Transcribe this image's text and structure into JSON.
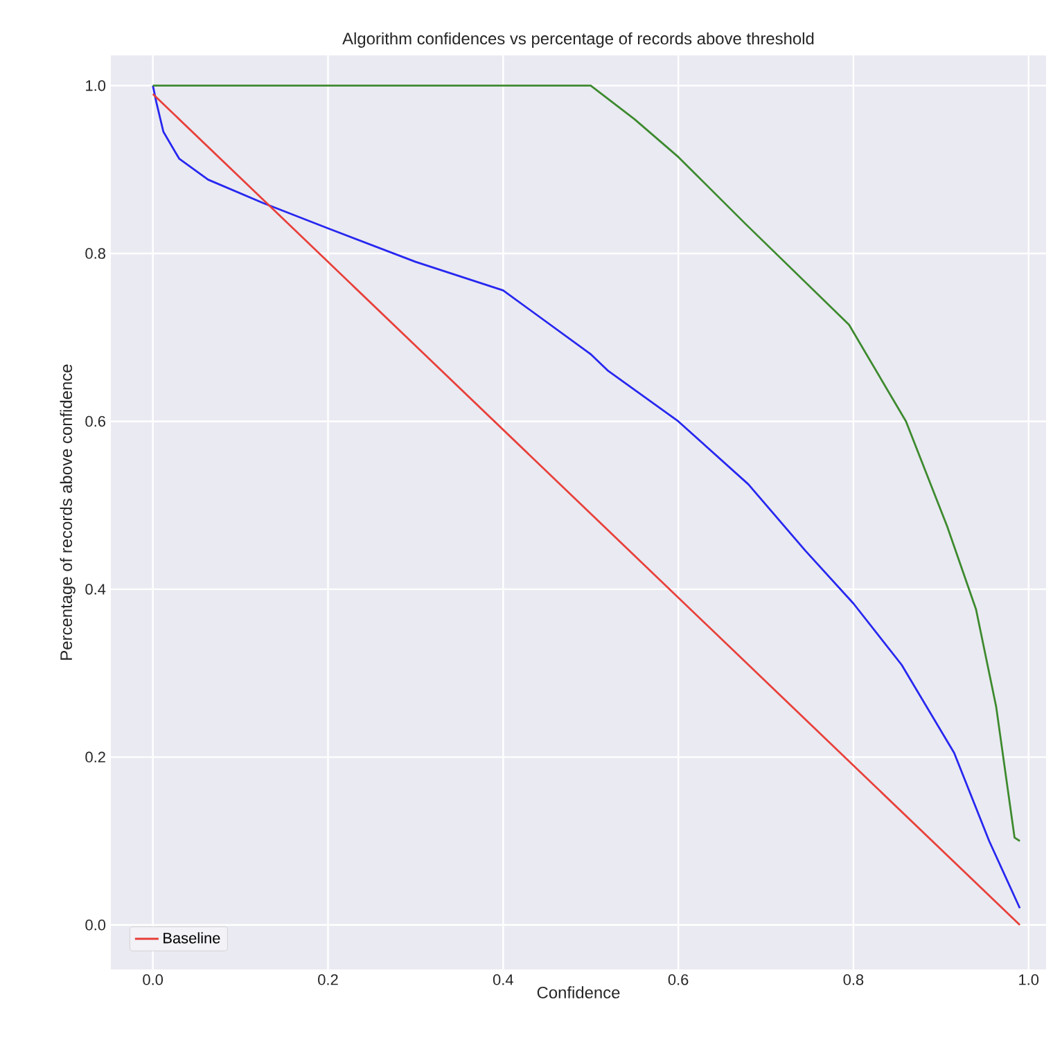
{
  "chart_data": {
    "type": "line",
    "title": "Algorithm confidences vs percentage of records above threshold",
    "xlabel": "Confidence",
    "ylabel": "Percentage of records above confidence",
    "xlim": [
      -0.048,
      1.02
    ],
    "ylim": [
      -0.053,
      1.036
    ],
    "xticks": [
      {
        "value": 0,
        "label": "0.0"
      },
      0.2,
      0.4,
      0.6,
      0.8,
      {
        "value": 1,
        "label": "1.0"
      }
    ],
    "yticks": [
      {
        "value": 0,
        "label": "0.0"
      },
      0.2,
      0.4,
      0.6,
      0.8,
      {
        "value": 1,
        "label": "1.0"
      }
    ],
    "grid": true,
    "legend": "bottom left",
    "line_style": "solid",
    "series": [
      {
        "color": "#2727f0",
        "x": [
          0,
          0.004,
          0.012,
          0.03,
          0.063,
          0.126,
          0.2,
          0.3,
          0.4,
          0.5,
          0.52,
          0.6,
          0.68,
          0.745,
          0.8,
          0.855,
          0.915,
          0.955,
          0.99
        ],
        "values": [
          1.0,
          0.98,
          0.945,
          0.913,
          0.888,
          0.86,
          0.83,
          0.79,
          0.756,
          0.68,
          0.66,
          0.6,
          0.525,
          0.446,
          0.383,
          0.31,
          0.205,
          0.1,
          0.02
        ]
      },
      {
        "color": "#3d8a2e",
        "x": [
          0,
          0.5,
          0.55,
          0.6,
          0.677,
          0.795,
          0.86,
          0.907,
          0.94,
          0.963,
          0.984,
          0.99
        ],
        "values": [
          1.0,
          1.0,
          0.96,
          0.915,
          0.835,
          0.715,
          0.6,
          0.475,
          0.376,
          0.26,
          0.104,
          0.1
        ]
      },
      {
        "name": "Baseline",
        "color": "#e8403a",
        "x": [
          0,
          0.99
        ],
        "values": [
          0.99,
          0.0
        ]
      }
    ]
  }
}
